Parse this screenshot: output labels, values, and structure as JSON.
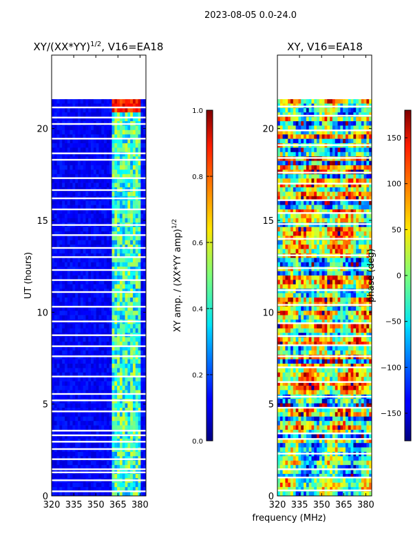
{
  "figure": {
    "suptitle": "2023-08-05 0.0-24.0",
    "xlabel_shared": "frequency (MHz)"
  },
  "chart_data": [
    {
      "type": "heatmap",
      "title": "XY/(XX*YY)",
      "title_sup": "1/2",
      "title_suffix": ", V16=EA18",
      "ylabel": "UT (hours)",
      "xlim": [
        320,
        384
      ],
      "ylim": [
        0,
        24
      ],
      "xticks": [
        320,
        335,
        350,
        365,
        380
      ],
      "yticks": [
        0,
        5,
        10,
        15,
        20
      ],
      "data_extent_hours": [
        0,
        21.6
      ],
      "bright_band_mhz": [
        361,
        380
      ],
      "gap_hours": [
        0.25,
        0.85,
        1.28,
        1.45,
        2.0,
        2.55,
        2.95,
        3.3,
        3.55,
        4.6,
        5.2,
        5.55,
        6.5,
        7.6,
        8.15,
        8.75,
        9.5,
        10.3,
        11.1,
        11.75,
        12.3,
        13.0,
        13.5,
        14.2,
        14.75,
        15.6,
        16.2,
        16.65,
        17.3,
        18.3,
        18.65,
        19.45,
        20.25,
        20.6,
        21.15
      ],
      "colorbar": {
        "label": "XY amp. / (XX*YY amp)",
        "label_sup": "1/2",
        "min": 0.0,
        "max": 1.0,
        "ticks": [
          "0.0",
          "0.2",
          "0.4",
          "0.6",
          "0.8",
          "1.0"
        ]
      }
    },
    {
      "type": "heatmap",
      "title": "XY, V16=EA18",
      "ylabel": "",
      "xlim": [
        320,
        384
      ],
      "ylim": [
        0,
        24
      ],
      "xticks": [
        320,
        335,
        350,
        365,
        380
      ],
      "yticks": [
        0,
        5,
        10,
        15,
        20
      ],
      "data_extent_hours": [
        0,
        21.6
      ],
      "gap_hours": [
        0.3,
        1.0,
        1.45,
        2.3,
        3.1,
        3.4,
        4.8,
        5.4,
        6.2,
        7.0,
        7.6,
        8.2,
        8.7,
        9.4,
        10.4,
        11.2,
        12.4,
        13.1,
        14.0,
        14.8,
        15.4,
        16.1,
        17.0,
        17.6,
        18.4,
        19.1,
        19.9,
        20.7,
        21.2
      ],
      "colorbar": {
        "label": "phase (deg)",
        "min": -180,
        "max": 180,
        "ticks": [
          "−150",
          "−100",
          "−50",
          "0",
          "50",
          "100",
          "150"
        ],
        "tick_values": [
          -150,
          -100,
          -50,
          0,
          50,
          100,
          150
        ]
      }
    }
  ]
}
